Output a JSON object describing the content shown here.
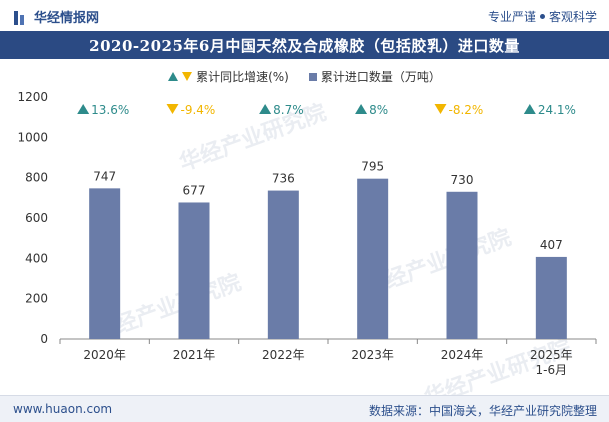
{
  "header": {
    "brand": "华经情报网",
    "slogan_left": "专业严谨",
    "slogan_right": "客观科学"
  },
  "title": "2020-2025年6月中国天然及合成橡胶（包括胶乳）进口数量",
  "legend": {
    "growth_label": "累计同比增速(%)",
    "volume_label": "累计进口数量（万吨）"
  },
  "watermark": "华经产业研究院",
  "footer": {
    "website": "www.huaon.com",
    "source": "数据来源：中国海关，华经产业研究院整理"
  },
  "colors": {
    "bar": "#6a7ca8",
    "up": "#2e8b8b",
    "down": "#f2b600",
    "title_bg": "#2b4a83"
  },
  "chart_data": {
    "type": "bar",
    "categories": [
      "2020年",
      "2021年",
      "2022年",
      "2023年",
      "2024年",
      "2025年 1-6月"
    ],
    "category_lines": [
      [
        "2020年"
      ],
      [
        "2021年"
      ],
      [
        "2022年"
      ],
      [
        "2023年"
      ],
      [
        "2024年"
      ],
      [
        "2025年",
        "1-6月"
      ]
    ],
    "series": [
      {
        "name": "累计进口数量（万吨）",
        "values": [
          747,
          677,
          736,
          795,
          730,
          407
        ]
      },
      {
        "name": "累计同比增速(%)",
        "values": [
          13.6,
          -9.4,
          8.7,
          8,
          -8.2,
          24.1
        ]
      }
    ],
    "growth_labels": [
      "13.6%",
      "-9.4%",
      "8.7%",
      "8%",
      "-8.2%",
      "24.1%"
    ],
    "ylim": [
      0,
      1200
    ],
    "yticks": [
      0,
      200,
      400,
      600,
      800,
      1000,
      1200
    ],
    "grid": false,
    "legend_position": "top"
  }
}
